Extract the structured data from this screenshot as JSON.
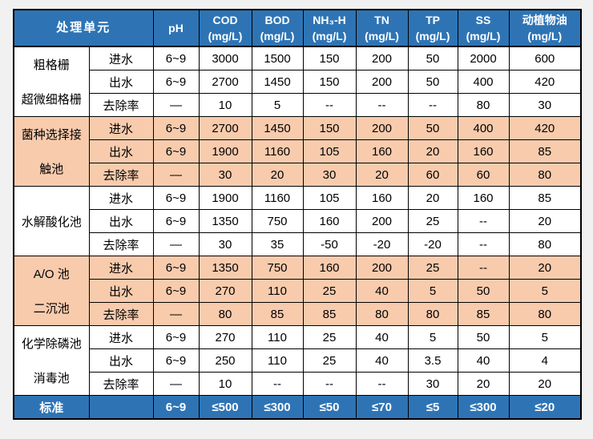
{
  "colors": {
    "header_bg": "#2E74B5",
    "header_text": "#ffffff",
    "band_orange": "#F8CBAD",
    "band_white": "#ffffff",
    "border": "#000000",
    "page_bg": "#f1f1f1"
  },
  "header": {
    "unit": "处理单元",
    "ph": "pH",
    "cols": [
      {
        "line1": "COD",
        "line2": "(mg/L)"
      },
      {
        "line1": "BOD",
        "line2": "(mg/L)"
      },
      {
        "line1": "NH₃-H",
        "line2": "(mg/L)"
      },
      {
        "line1": "TN",
        "line2": "(mg/L)"
      },
      {
        "line1": "TP",
        "line2": "(mg/L)"
      },
      {
        "line1": "SS",
        "line2": "(mg/L)"
      },
      {
        "line1": "动植物油",
        "line2": "(mg/L)"
      }
    ]
  },
  "groups": [
    {
      "band": "white",
      "unit_lines": [
        "粗格栅",
        "超微细格栅"
      ],
      "rows": [
        {
          "label": "进水",
          "ph": "6~9",
          "values": [
            "3000",
            "1500",
            "150",
            "200",
            "50",
            "2000",
            "600"
          ]
        },
        {
          "label": "出水",
          "ph": "6~9",
          "values": [
            "2700",
            "1450",
            "150",
            "200",
            "50",
            "400",
            "420"
          ]
        },
        {
          "label": "去除率",
          "ph": "—",
          "values": [
            "10",
            "5",
            "--",
            "--",
            "--",
            "80",
            "30"
          ]
        }
      ]
    },
    {
      "band": "orange",
      "unit_lines": [
        "菌种选择接",
        "触池"
      ],
      "rows": [
        {
          "label": "进水",
          "ph": "6~9",
          "values": [
            "2700",
            "1450",
            "150",
            "200",
            "50",
            "400",
            "420"
          ]
        },
        {
          "label": "出水",
          "ph": "6~9",
          "values": [
            "1900",
            "1160",
            "105",
            "160",
            "20",
            "160",
            "85"
          ]
        },
        {
          "label": "去除率",
          "ph": "—",
          "values": [
            "30",
            "20",
            "30",
            "20",
            "60",
            "60",
            "80"
          ]
        }
      ]
    },
    {
      "band": "white",
      "unit_lines": [
        "水解酸化池"
      ],
      "rows": [
        {
          "label": "进水",
          "ph": "6~9",
          "values": [
            "1900",
            "1160",
            "105",
            "160",
            "20",
            "160",
            "85"
          ]
        },
        {
          "label": "出水",
          "ph": "6~9",
          "values": [
            "1350",
            "750",
            "160",
            "200",
            "25",
            "--",
            "20"
          ]
        },
        {
          "label": "去除率",
          "ph": "—",
          "values": [
            "30",
            "35",
            "-50",
            "-20",
            "-20",
            "--",
            "80"
          ]
        }
      ]
    },
    {
      "band": "orange",
      "unit_lines": [
        "A/O 池",
        "二沉池"
      ],
      "rows": [
        {
          "label": "进水",
          "ph": "6~9",
          "values": [
            "1350",
            "750",
            "160",
            "200",
            "25",
            "--",
            "20"
          ]
        },
        {
          "label": "出水",
          "ph": "6~9",
          "values": [
            "270",
            "110",
            "25",
            "40",
            "5",
            "50",
            "5"
          ]
        },
        {
          "label": "去除率",
          "ph": "—",
          "values": [
            "80",
            "85",
            "85",
            "80",
            "80",
            "85",
            "80"
          ]
        }
      ]
    },
    {
      "band": "white",
      "unit_lines": [
        "化学除磷池",
        "消毒池"
      ],
      "rows": [
        {
          "label": "进水",
          "ph": "6~9",
          "values": [
            "270",
            "110",
            "25",
            "40",
            "5",
            "50",
            "5"
          ]
        },
        {
          "label": "出水",
          "ph": "6~9",
          "values": [
            "250",
            "110",
            "25",
            "40",
            "3.5",
            "40",
            "4"
          ]
        },
        {
          "label": "去除率",
          "ph": "—",
          "values": [
            "10",
            "--",
            "--",
            "--",
            "30",
            "20",
            "20"
          ]
        }
      ]
    }
  ],
  "standard": {
    "label": "标准",
    "empty": "",
    "ph": "6~9",
    "values": [
      "≤500",
      "≤300",
      "≤50",
      "≤70",
      "≤5",
      "≤300",
      "≤20"
    ]
  }
}
